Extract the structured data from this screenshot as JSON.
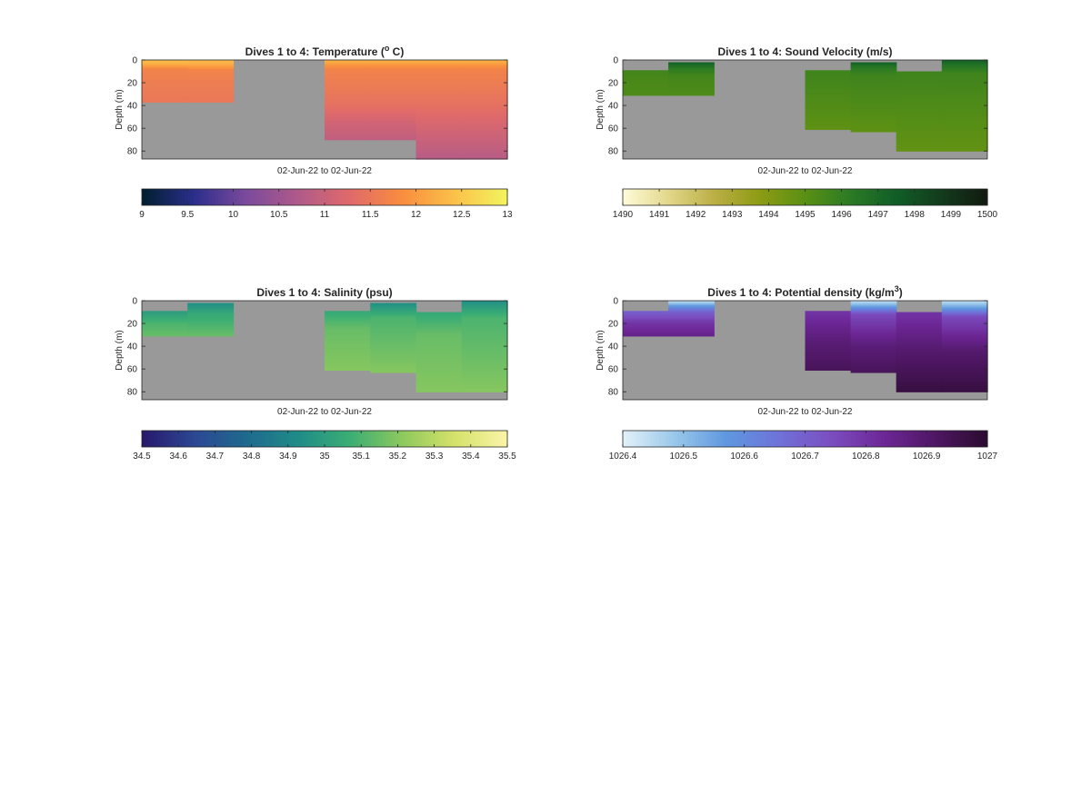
{
  "figure": {
    "background": "#ffffff",
    "nodata_color": "#999999"
  },
  "chart_data": [
    {
      "type": "heatmap",
      "id": "temperature",
      "title_main": "Dives 1 to 4: Temperature (",
      "title_sup": "o",
      "title_end": " C)",
      "ylabel": "Depth (m)",
      "xlabel": "02-Jun-22 to 02-Jun-22",
      "ylim": [
        87,
        0
      ],
      "yticks": [
        0,
        20,
        40,
        60,
        80
      ],
      "grid": false,
      "colormap": [
        "#001f2e",
        "#2b2e8c",
        "#7b4a9c",
        "#b05a8a",
        "#e06a6a",
        "#f98e3e",
        "#fbc14a",
        "#f2f55e"
      ],
      "clim": [
        9,
        13
      ],
      "cticks": [
        "9",
        "9.5",
        "10",
        "10.5",
        "11",
        "11.5",
        "12",
        "12.5",
        "13"
      ],
      "casts": [
        {
          "max_depth": 37,
          "profile": [
            [
              0,
              12.4
            ],
            [
              4,
              12.2
            ],
            [
              8,
              11.7
            ],
            [
              20,
              11.6
            ],
            [
              37,
              11.5
            ]
          ]
        },
        {
          "max_depth": 37,
          "profile": [
            [
              0,
              12.4
            ],
            [
              5,
              12.1
            ],
            [
              9,
              11.7
            ],
            [
              20,
              11.6
            ],
            [
              37,
              11.5
            ]
          ]
        },
        {
          "max_depth": 0,
          "profile": []
        },
        {
          "max_depth": 0,
          "profile": []
        },
        {
          "max_depth": 70,
          "profile": [
            [
              0,
              12.3
            ],
            [
              8,
              11.7
            ],
            [
              40,
              11.4
            ],
            [
              55,
              11.1
            ],
            [
              70,
              10.9
            ]
          ]
        },
        {
          "max_depth": 70,
          "profile": [
            [
              0,
              12.3
            ],
            [
              8,
              11.7
            ],
            [
              40,
              11.4
            ],
            [
              55,
              11.1
            ],
            [
              70,
              10.9
            ]
          ]
        },
        {
          "max_depth": 87,
          "profile": [
            [
              0,
              12.3
            ],
            [
              8,
              11.7
            ],
            [
              40,
              11.4
            ],
            [
              70,
              11.0
            ],
            [
              87,
              10.8
            ]
          ]
        },
        {
          "max_depth": 87,
          "profile": [
            [
              0,
              12.3
            ],
            [
              8,
              11.7
            ],
            [
              40,
              11.4
            ],
            [
              70,
              11.0
            ],
            [
              87,
              10.8
            ]
          ]
        }
      ]
    },
    {
      "type": "heatmap",
      "id": "sound-velocity",
      "title_main": "Dives 1 to 4: Sound Velocity (m/s)",
      "title_sup": "",
      "title_end": "",
      "ylabel": "Depth (m)",
      "xlabel": "02-Jun-22 to 02-Jun-22",
      "ylim": [
        87,
        0
      ],
      "yticks": [
        0,
        20,
        40,
        60,
        80
      ],
      "grid": false,
      "colormap": [
        "#fffcd9",
        "#e2d78b",
        "#bcaf46",
        "#8d9b14",
        "#5a9015",
        "#2b7a24",
        "#105e28",
        "#133b1c",
        "#111a10"
      ],
      "clim": [
        1490,
        1500
      ],
      "cticks": [
        "1490",
        "1491",
        "1492",
        "1493",
        "1494",
        "1495",
        "1496",
        "1497",
        "1498",
        "1499",
        "1500"
      ],
      "casts": [
        {
          "max_depth": 31,
          "profile": [
            [
              0,
              null
            ],
            [
              9,
              null
            ],
            [
              10,
              1495.6
            ],
            [
              20,
              1495.4
            ],
            [
              31,
              1495.3
            ]
          ]
        },
        {
          "max_depth": 31,
          "profile": [
            [
              0,
              null
            ],
            [
              2,
              null
            ],
            [
              3,
              1497.2
            ],
            [
              7,
              1496.3
            ],
            [
              14,
              1495.6
            ],
            [
              31,
              1495.3
            ]
          ]
        },
        {
          "max_depth": 0,
          "profile": []
        },
        {
          "max_depth": 0,
          "profile": []
        },
        {
          "max_depth": 61,
          "profile": [
            [
              0,
              null
            ],
            [
              9,
              null
            ],
            [
              10,
              1495.7
            ],
            [
              35,
              1495.3
            ],
            [
              61,
              1494.9
            ]
          ]
        },
        {
          "max_depth": 63,
          "profile": [
            [
              0,
              null
            ],
            [
              2,
              null
            ],
            [
              3,
              1497.2
            ],
            [
              7,
              1496.3
            ],
            [
              14,
              1495.7
            ],
            [
              40,
              1495.3
            ],
            [
              63,
              1494.9
            ]
          ]
        },
        {
          "max_depth": 80,
          "profile": [
            [
              0,
              null
            ],
            [
              10,
              null
            ],
            [
              11,
              1495.7
            ],
            [
              40,
              1495.3
            ],
            [
              80,
              1494.8
            ]
          ]
        },
        {
          "max_depth": 80,
          "profile": [
            [
              0,
              null
            ],
            [
              0.5,
              1497.3
            ],
            [
              5,
              1496.5
            ],
            [
              12,
              1495.7
            ],
            [
              40,
              1495.3
            ],
            [
              80,
              1494.8
            ]
          ]
        }
      ]
    },
    {
      "type": "heatmap",
      "id": "salinity",
      "title_main": "Dives 1 to 4: Salinity (psu)",
      "title_sup": "",
      "title_end": "",
      "ylabel": "Depth (m)",
      "xlabel": "02-Jun-22 to 02-Jun-22",
      "ylim": [
        87,
        0
      ],
      "yticks": [
        0,
        20,
        40,
        60,
        80
      ],
      "grid": false,
      "colormap": [
        "#28186a",
        "#2c4793",
        "#1e6a8e",
        "#1f8c88",
        "#3cae74",
        "#8ec95d",
        "#d5e26b",
        "#fbf3a8"
      ],
      "clim": [
        34.5,
        35.5
      ],
      "cticks": [
        "34.5",
        "34.6",
        "34.7",
        "34.8",
        "34.9",
        "35",
        "35.1",
        "35.2",
        "35.3",
        "35.4",
        "35.5"
      ],
      "casts": [
        {
          "max_depth": 31,
          "profile": [
            [
              0,
              null
            ],
            [
              9,
              null
            ],
            [
              10,
              35.0
            ],
            [
              20,
              35.1
            ],
            [
              31,
              35.15
            ]
          ]
        },
        {
          "max_depth": 31,
          "profile": [
            [
              0,
              null
            ],
            [
              2,
              null
            ],
            [
              3,
              34.95
            ],
            [
              12,
              35.05
            ],
            [
              31,
              35.15
            ]
          ]
        },
        {
          "max_depth": 0,
          "profile": []
        },
        {
          "max_depth": 0,
          "profile": []
        },
        {
          "max_depth": 61,
          "profile": [
            [
              0,
              null
            ],
            [
              9,
              null
            ],
            [
              10,
              35.05
            ],
            [
              25,
              35.15
            ],
            [
              61,
              35.2
            ]
          ]
        },
        {
          "max_depth": 63,
          "profile": [
            [
              0,
              null
            ],
            [
              2,
              null
            ],
            [
              3,
              34.95
            ],
            [
              15,
              35.1
            ],
            [
              63,
              35.2
            ]
          ]
        },
        {
          "max_depth": 80,
          "profile": [
            [
              0,
              null
            ],
            [
              10,
              null
            ],
            [
              11,
              35.05
            ],
            [
              30,
              35.15
            ],
            [
              80,
              35.2
            ]
          ]
        },
        {
          "max_depth": 80,
          "profile": [
            [
              0,
              null
            ],
            [
              0.5,
              34.95
            ],
            [
              15,
              35.1
            ],
            [
              80,
              35.2
            ]
          ]
        }
      ]
    },
    {
      "type": "heatmap",
      "id": "potential-density",
      "title_main": "Dives 1 to 4: Potential density (kg/m",
      "title_sup": "3",
      "title_end": ")",
      "ylabel": "Depth (m)",
      "xlabel": "02-Jun-22 to 02-Jun-22",
      "ylim": [
        87,
        0
      ],
      "yticks": [
        0,
        20,
        40,
        60,
        80
      ],
      "grid": false,
      "colormap": [
        "#e4f1f8",
        "#99c7ea",
        "#5e97df",
        "#6f72d9",
        "#7b4ec0",
        "#6d2796",
        "#4e1763",
        "#2b0b2e"
      ],
      "clim": [
        1026.4,
        1027
      ],
      "cticks": [
        "1026.4",
        "1026.5",
        "1026.6",
        "1026.7",
        "1026.8",
        "1026.9",
        "1027"
      ],
      "casts": [
        {
          "max_depth": 31,
          "profile": [
            [
              0,
              null
            ],
            [
              9,
              null
            ],
            [
              10,
              1026.7
            ],
            [
              20,
              1026.8
            ],
            [
              31,
              1026.85
            ]
          ]
        },
        {
          "max_depth": 31,
          "profile": [
            [
              0,
              null
            ],
            [
              1,
              1026.45
            ],
            [
              4,
              1026.55
            ],
            [
              10,
              1026.7
            ],
            [
              20,
              1026.8
            ],
            [
              31,
              1026.85
            ]
          ]
        },
        {
          "max_depth": 0,
          "profile": []
        },
        {
          "max_depth": 0,
          "profile": []
        },
        {
          "max_depth": 61,
          "profile": [
            [
              0,
              null
            ],
            [
              9,
              null
            ],
            [
              10,
              1026.8
            ],
            [
              35,
              1026.88
            ],
            [
              61,
              1026.93
            ]
          ]
        },
        {
          "max_depth": 63,
          "profile": [
            [
              0,
              null
            ],
            [
              1,
              1026.45
            ],
            [
              5,
              1026.55
            ],
            [
              12,
              1026.75
            ],
            [
              40,
              1026.88
            ],
            [
              63,
              1026.93
            ]
          ]
        },
        {
          "max_depth": 80,
          "profile": [
            [
              0,
              null
            ],
            [
              10,
              null
            ],
            [
              11,
              1026.8
            ],
            [
              45,
              1026.9
            ],
            [
              80,
              1026.97
            ]
          ]
        },
        {
          "max_depth": 80,
          "profile": [
            [
              0,
              null
            ],
            [
              1,
              1026.45
            ],
            [
              6,
              1026.55
            ],
            [
              14,
              1026.75
            ],
            [
              45,
              1026.9
            ],
            [
              80,
              1026.97
            ]
          ]
        }
      ]
    }
  ]
}
